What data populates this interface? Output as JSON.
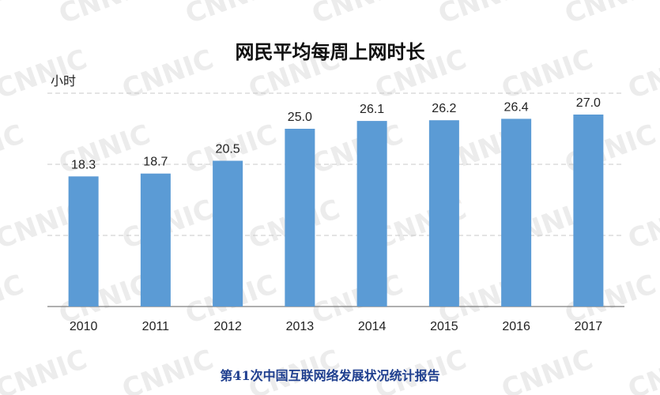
{
  "chart_data": {
    "type": "bar",
    "title": "网民平均每周上网时长",
    "ylabel": "小时",
    "xlabel": "",
    "categories": [
      "2010",
      "2011",
      "2012",
      "2013",
      "2014",
      "2015",
      "2016",
      "2017"
    ],
    "values": [
      18.3,
      18.7,
      20.5,
      25.0,
      26.1,
      26.2,
      26.4,
      27.0
    ],
    "value_labels": [
      "18.3",
      "18.7",
      "20.5",
      "25.0",
      "26.1",
      "26.2",
      "26.4",
      "27.0"
    ],
    "ylim": [
      0,
      30
    ],
    "grid": true,
    "bar_color": "#5b9bd5"
  },
  "watermark": "CNNIC",
  "footer": "第41次中国互联网络发展状况统计报告"
}
